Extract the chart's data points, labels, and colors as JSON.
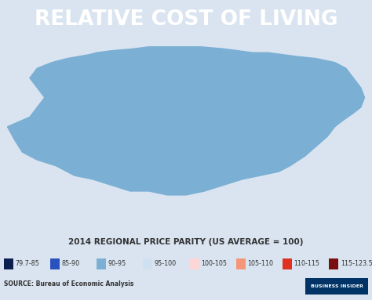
{
  "title": "RELATIVE COST OF LIVING",
  "title_bg_color": "#3a7dc9",
  "title_text_color": "#ffffff",
  "subtitle": "2014 REGIONAL PRICE PARITY (US AVERAGE = 100)",
  "subtitle_color": "#333333",
  "bg_color": "#d9e4f0",
  "map_bg_color": "#d9e4f0",
  "footer_bg_color": "#cccccc",
  "source_text": "SOURCE: Bureau of Economic Analysis",
  "brand_text": "BUSINESS INSIDER",
  "legend_items": [
    {
      "label": "79.7-85",
      "color": "#0d1f4e"
    },
    {
      "label": "85-90",
      "color": "#2a52be"
    },
    {
      "label": "90-95",
      "color": "#7bafd4"
    },
    {
      "label": "95-100",
      "color": "#cfe0f0"
    },
    {
      "label": "100-105",
      "color": "#ffd6d6"
    },
    {
      "label": "105-110",
      "color": "#f4967a"
    },
    {
      "label": "110-115",
      "color": "#e03020"
    },
    {
      "label": "115-123.5",
      "color": "#7a0f0f"
    }
  ],
  "figsize": [
    4.74,
    3.83
  ],
  "dpi": 100
}
